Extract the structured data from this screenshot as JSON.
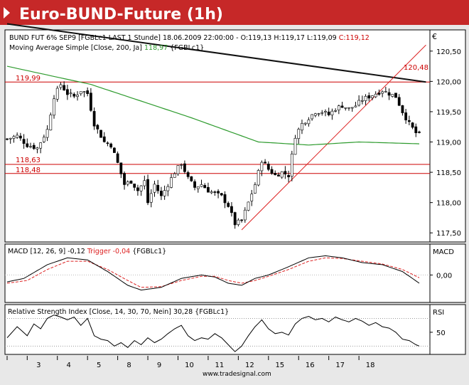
{
  "header": {
    "title": "Euro-BUND-Future (1h)",
    "currency": "€"
  },
  "colors": {
    "header_bg": "#c62828",
    "header_arrow": "#ffffff",
    "up": "#ffffff",
    "down": "#000000",
    "wick": "#000000",
    "ma": "#2e9b2e",
    "level": "#cc0000",
    "trend_black": "#111111",
    "trend_red": "#dd2222",
    "macd": "#000000",
    "signal": "#dd2222",
    "rsi": "#000000"
  },
  "chart_data": [
    {
      "type": "candlestick",
      "legend": {
        "prefix": "BUND FUT 6% SEP9 [FGBLc1 LAST 1 Stunde] 18.06.2009 22:00:00 - O:119,13 H:119,17 L:119,09 ",
        "close_label": "C:119,12",
        "ma_label": "Moving Average Simple [Close, 200, Ja] ",
        "ma_value": "118,97",
        "ma_suffix": " {FGBLc1}"
      },
      "ylim": [
        117.35,
        120.85
      ],
      "yticks": [
        "117,50",
        "118,00",
        "118,50",
        "119,00",
        "119,50",
        "120,00",
        "120,50"
      ],
      "ytick_values": [
        117.5,
        118.0,
        118.5,
        119.0,
        119.5,
        120.0,
        120.5
      ],
      "levels": [
        {
          "value": 119.99,
          "label": "119,99"
        },
        {
          "value": 118.63,
          "label": "118,63"
        },
        {
          "value": 118.48,
          "label": "118,48"
        }
      ],
      "trend_annotation": "120,48",
      "close_anchors": [
        [
          0,
          119.05
        ],
        [
          3,
          119.1
        ],
        [
          6,
          118.95
        ],
        [
          9,
          118.9
        ],
        [
          12,
          119.2
        ],
        [
          14,
          119.75
        ],
        [
          16,
          119.95
        ],
        [
          18,
          119.8
        ],
        [
          20,
          119.75
        ],
        [
          22,
          119.85
        ],
        [
          24,
          119.8
        ],
        [
          26,
          119.3
        ],
        [
          29,
          119.0
        ],
        [
          31,
          118.95
        ],
        [
          33,
          118.65
        ],
        [
          35,
          118.3
        ],
        [
          37,
          118.35
        ],
        [
          39,
          118.2
        ],
        [
          41,
          118.35
        ],
        [
          42,
          118.0
        ],
        [
          44,
          118.3
        ],
        [
          46,
          118.1
        ],
        [
          48,
          118.3
        ],
        [
          50,
          118.5
        ],
        [
          52,
          118.65
        ],
        [
          54,
          118.4
        ],
        [
          56,
          118.25
        ],
        [
          58,
          118.3
        ],
        [
          60,
          118.2
        ],
        [
          62,
          118.15
        ],
        [
          64,
          118.1
        ],
        [
          66,
          117.95
        ],
        [
          68,
          117.65
        ],
        [
          70,
          117.7
        ],
        [
          72,
          118.0
        ],
        [
          74,
          118.3
        ],
        [
          76,
          118.7
        ],
        [
          78,
          118.55
        ],
        [
          80,
          118.45
        ],
        [
          82,
          118.5
        ],
        [
          84,
          118.45
        ],
        [
          86,
          119.1
        ],
        [
          88,
          119.3
        ],
        [
          90,
          119.4
        ],
        [
          92,
          119.5
        ],
        [
          94,
          119.5
        ],
        [
          96,
          119.45
        ],
        [
          98,
          119.55
        ],
        [
          100,
          119.6
        ],
        [
          102,
          119.55
        ],
        [
          104,
          119.6
        ],
        [
          106,
          119.7
        ],
        [
          108,
          119.75
        ],
        [
          110,
          119.8
        ],
        [
          112,
          119.85
        ],
        [
          114,
          119.8
        ],
        [
          116,
          119.75
        ],
        [
          118,
          119.5
        ],
        [
          120,
          119.3
        ],
        [
          122,
          119.15
        ],
        [
          123,
          119.12
        ]
      ],
      "ma200": [
        [
          0,
          120.25
        ],
        [
          25,
          119.95
        ],
        [
          55,
          119.4
        ],
        [
          75,
          119.0
        ],
        [
          90,
          118.95
        ],
        [
          105,
          119.0
        ],
        [
          123,
          118.97
        ]
      ],
      "trend_black": [
        [
          0,
          120.95
        ],
        [
          125,
          119.99
        ]
      ],
      "trend_red": [
        [
          70,
          117.55
        ],
        [
          125,
          120.6
        ]
      ]
    },
    {
      "type": "line",
      "legend": {
        "prefix": "MACD [12, 26, 9] -0,12 ",
        "trigger_label": "Trigger -0,04",
        "suffix": " {FGBLc1}"
      },
      "axis_label": "MACD",
      "ylim": [
        -0.4,
        0.45
      ],
      "yticks": [
        "0,00"
      ],
      "ytick_values": [
        0.0
      ],
      "macd": [
        [
          0,
          -0.1
        ],
        [
          5,
          -0.05
        ],
        [
          12,
          0.15
        ],
        [
          18,
          0.25
        ],
        [
          24,
          0.22
        ],
        [
          30,
          0.05
        ],
        [
          36,
          -0.15
        ],
        [
          40,
          -0.22
        ],
        [
          46,
          -0.18
        ],
        [
          52,
          -0.05
        ],
        [
          58,
          0.0
        ],
        [
          62,
          -0.03
        ],
        [
          66,
          -0.12
        ],
        [
          70,
          -0.15
        ],
        [
          74,
          -0.05
        ],
        [
          78,
          0.0
        ],
        [
          84,
          0.12
        ],
        [
          90,
          0.25
        ],
        [
          95,
          0.28
        ],
        [
          100,
          0.25
        ],
        [
          106,
          0.18
        ],
        [
          112,
          0.15
        ],
        [
          118,
          0.05
        ],
        [
          123,
          -0.12
        ]
      ],
      "signal": [
        [
          0,
          -0.12
        ],
        [
          6,
          -0.08
        ],
        [
          12,
          0.08
        ],
        [
          18,
          0.2
        ],
        [
          24,
          0.2
        ],
        [
          30,
          0.08
        ],
        [
          36,
          -0.08
        ],
        [
          40,
          -0.18
        ],
        [
          46,
          -0.17
        ],
        [
          52,
          -0.08
        ],
        [
          58,
          -0.02
        ],
        [
          62,
          -0.02
        ],
        [
          66,
          -0.08
        ],
        [
          70,
          -0.12
        ],
        [
          74,
          -0.08
        ],
        [
          78,
          -0.02
        ],
        [
          84,
          0.08
        ],
        [
          90,
          0.2
        ],
        [
          95,
          0.25
        ],
        [
          100,
          0.24
        ],
        [
          106,
          0.2
        ],
        [
          112,
          0.16
        ],
        [
          118,
          0.08
        ],
        [
          123,
          -0.04
        ]
      ]
    },
    {
      "type": "line",
      "legend": {
        "text": "Relative Strength Index [Close, 14, 30, 70, Nein] 30,28 {FGBLc1}"
      },
      "axis_label": "RSI",
      "ylim": [
        18,
        90
      ],
      "yticks": [
        "50"
      ],
      "ytick_values": [
        50
      ],
      "guides": [
        30,
        70
      ],
      "rsi": [
        [
          0,
          42
        ],
        [
          3,
          58
        ],
        [
          6,
          45
        ],
        [
          8,
          62
        ],
        [
          10,
          55
        ],
        [
          12,
          70
        ],
        [
          14,
          75
        ],
        [
          16,
          72
        ],
        [
          18,
          68
        ],
        [
          20,
          72
        ],
        [
          22,
          60
        ],
        [
          24,
          70
        ],
        [
          26,
          45
        ],
        [
          28,
          40
        ],
        [
          30,
          38
        ],
        [
          32,
          30
        ],
        [
          34,
          35
        ],
        [
          36,
          28
        ],
        [
          38,
          38
        ],
        [
          40,
          32
        ],
        [
          42,
          42
        ],
        [
          44,
          35
        ],
        [
          46,
          40
        ],
        [
          48,
          48
        ],
        [
          50,
          55
        ],
        [
          52,
          60
        ],
        [
          54,
          45
        ],
        [
          56,
          38
        ],
        [
          58,
          42
        ],
        [
          60,
          40
        ],
        [
          62,
          48
        ],
        [
          64,
          42
        ],
        [
          66,
          32
        ],
        [
          68,
          22
        ],
        [
          70,
          30
        ],
        [
          72,
          45
        ],
        [
          74,
          58
        ],
        [
          76,
          68
        ],
        [
          78,
          55
        ],
        [
          80,
          48
        ],
        [
          82,
          50
        ],
        [
          84,
          46
        ],
        [
          86,
          62
        ],
        [
          88,
          70
        ],
        [
          90,
          73
        ],
        [
          92,
          68
        ],
        [
          94,
          70
        ],
        [
          96,
          65
        ],
        [
          98,
          72
        ],
        [
          100,
          68
        ],
        [
          102,
          65
        ],
        [
          104,
          70
        ],
        [
          106,
          66
        ],
        [
          108,
          60
        ],
        [
          110,
          64
        ],
        [
          112,
          58
        ],
        [
          114,
          56
        ],
        [
          116,
          50
        ],
        [
          118,
          40
        ],
        [
          120,
          38
        ],
        [
          122,
          32
        ],
        [
          123,
          30
        ]
      ]
    },
    {
      "type": "time-axis",
      "day_labels": [
        "3",
        "4",
        "5",
        "8",
        "9",
        "10",
        "11",
        "12",
        "15",
        "16",
        "17",
        "18"
      ],
      "day_starts": [
        6,
        15,
        24,
        33,
        42,
        51,
        60,
        69,
        78,
        87,
        96,
        105
      ],
      "n_bars": 124,
      "watermark": "www.tradesignal.com"
    }
  ]
}
